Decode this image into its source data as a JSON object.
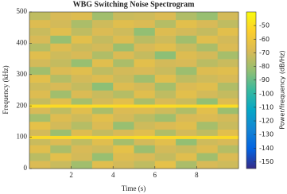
{
  "chart_data": {
    "type": "heatmap",
    "title": "WBG Switching Noise Spectrogram",
    "xlabel": "Time (s)",
    "ylabel": "Frequency (kHz)",
    "colorbar_label": "Power/frequency (dB/Hz)",
    "colormap": "parula",
    "xbins": [
      0,
      1,
      2,
      3,
      4,
      5,
      6,
      7,
      8,
      9,
      10
    ],
    "ybins": [
      0,
      25,
      50,
      75,
      95,
      105,
      125,
      150,
      175,
      195,
      205,
      225,
      250,
      275,
      300,
      325,
      350,
      375,
      400,
      425,
      450,
      475,
      500
    ],
    "z": [
      [
        -68,
        -72,
        -80,
        -66,
        -70,
        -74,
        -64,
        -78,
        -69,
        -71
      ],
      [
        -75,
        -65,
        -70,
        -82,
        -67,
        -69,
        -73,
        -66,
        -80,
        -68
      ],
      [
        -66,
        -78,
        -69,
        -71,
        -64,
        -81,
        -70,
        -72,
        -67,
        -76
      ],
      [
        -72,
        -68,
        -74,
        -66,
        -79,
        -70,
        -65,
        -83,
        -71,
        -69
      ],
      [
        -51,
        -51,
        -50,
        -51,
        -51,
        -50,
        -51,
        -51,
        -50,
        -51
      ],
      [
        -70,
        -81,
        -67,
        -73,
        -69,
        -66,
        -77,
        -70,
        -74,
        -65
      ],
      [
        -64,
        -70,
        -76,
        -68,
        -82,
        -71,
        -68,
        -66,
        -79,
        -72
      ],
      [
        -79,
        -67,
        -71,
        -65,
        -70,
        -75,
        -80,
        -69,
        -68,
        -70
      ],
      [
        -69,
        -74,
        -66,
        -78,
        -68,
        -67,
        -71,
        -77,
        -65,
        -81
      ],
      [
        -50,
        -51,
        -51,
        -50,
        -51,
        -51,
        -50,
        -51,
        -51,
        -50
      ],
      [
        -73,
        -66,
        -79,
        -70,
        -65,
        -78,
        -69,
        -72,
        -83,
        -67
      ],
      [
        -67,
        -80,
        -68,
        -72,
        -76,
        -66,
        -74,
        -65,
        -70,
        -73
      ],
      [
        -71,
        -69,
        -73,
        -84,
        -67,
        -70,
        -79,
        -68,
        -66,
        -77
      ],
      [
        -65,
        -76,
        -70,
        -67,
        -72,
        -80,
        -66,
        -74,
        -71,
        -69
      ],
      [
        -80,
        -68,
        -66,
        -74,
        -70,
        -69,
        -72,
        -81,
        -67,
        -66
      ],
      [
        -70,
        -73,
        -82,
        -66,
        -78,
        -65,
        -70,
        -69,
        -75,
        -72
      ],
      [
        -66,
        -71,
        -69,
        -77,
        -68,
        -73,
        -84,
        -67,
        -70,
        -79
      ],
      [
        -76,
        -67,
        -72,
        -70,
        -81,
        -69,
        -66,
        -72,
        -78,
        -68
      ],
      [
        -69,
        -82,
        -65,
        -73,
        -67,
        -75,
        -71,
        -80,
        -66,
        -70
      ],
      [
        -72,
        -66,
        -74,
        -68,
        -71,
        -83,
        -67,
        -70,
        -73,
        -65
      ],
      [
        -67,
        -70,
        -78,
        -71,
        -66,
        -68,
        -76,
        -65,
        -69,
        -74
      ],
      [
        -74,
        -69,
        -67,
        -80,
        -72,
        -71,
        -68,
        -77,
        -82,
        -70
      ]
    ],
    "xlim": [
      0,
      10
    ],
    "xticks": [
      2,
      4,
      6,
      8
    ],
    "ylim": [
      0,
      500
    ],
    "yticks": [
      0,
      100,
      200,
      300,
      400,
      500
    ],
    "clim": [
      -155,
      -40
    ],
    "cticks": [
      -50,
      -60,
      -70,
      -80,
      -90,
      -100,
      -110,
      -120,
      -130,
      -140,
      -150
    ]
  }
}
